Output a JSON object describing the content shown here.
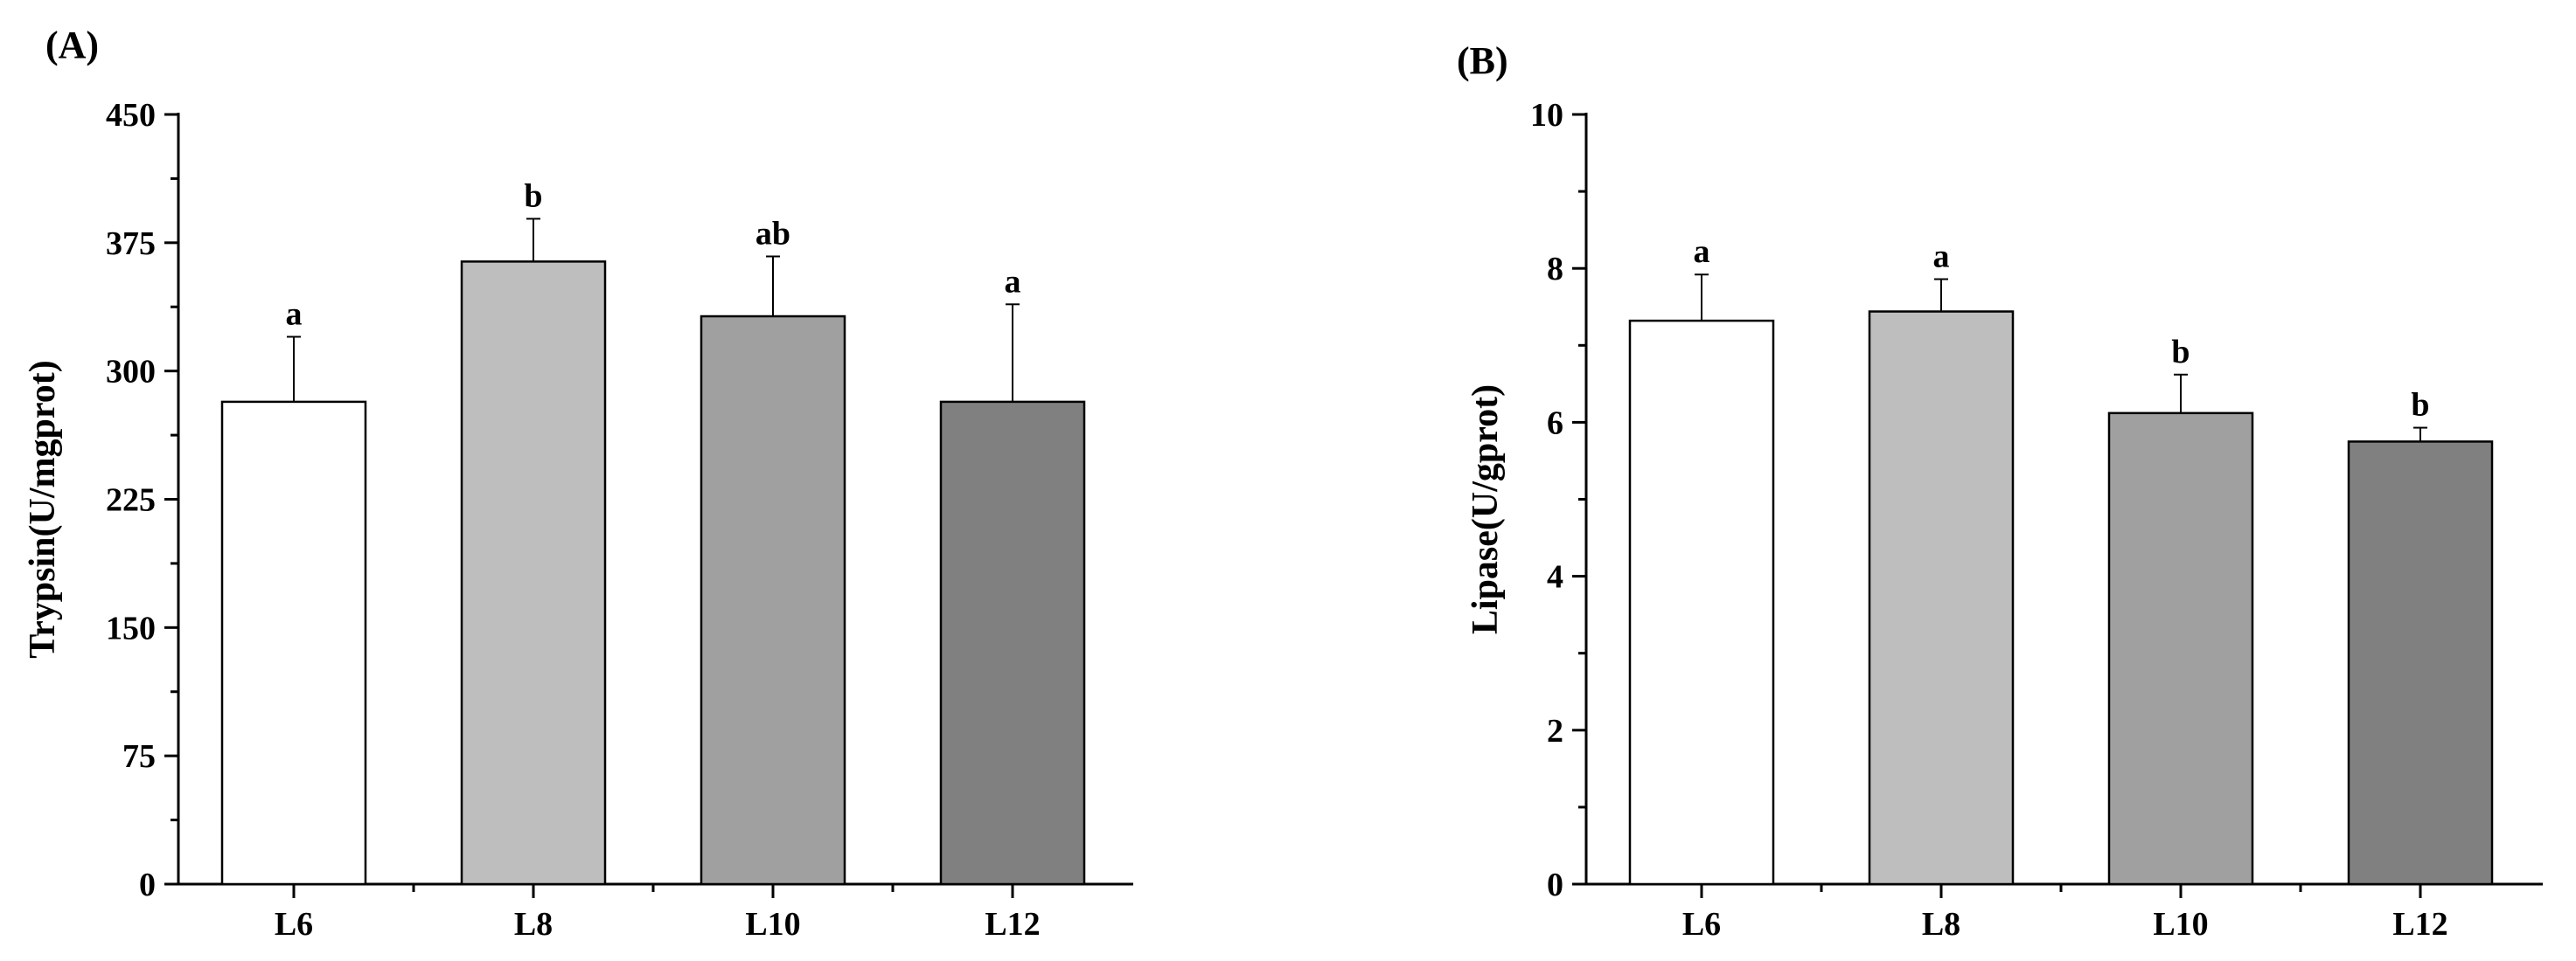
{
  "chart_data": [
    {
      "type": "bar",
      "panel_label": "(A)",
      "title": "",
      "xlabel": "",
      "ylabel": "Trypsin(U/mgprot)",
      "categories": [
        "L6",
        "L8",
        "L10",
        "L12"
      ],
      "values": [
        282,
        364,
        332,
        282
      ],
      "errors": [
        38,
        25,
        35,
        57
      ],
      "significance": [
        "a",
        "b",
        "ab",
        "a"
      ],
      "bar_colors": [
        "#ffffff",
        "#bebebe",
        "#a0a0a0",
        "#808080"
      ],
      "ylim": [
        0,
        450
      ],
      "yticks": [
        0,
        75,
        150,
        225,
        300,
        375,
        450
      ],
      "ytick_labels": [
        "0",
        "75",
        "150",
        "225",
        "300",
        "375",
        "450"
      ],
      "grid": false,
      "legend": "none"
    },
    {
      "type": "bar",
      "panel_label": "(B)",
      "title": "",
      "xlabel": "",
      "ylabel": "Lipase(U/gprot)",
      "categories": [
        "L6",
        "L8",
        "L10",
        "L12"
      ],
      "values": [
        7.32,
        7.44,
        6.12,
        5.75
      ],
      "errors": [
        0.6,
        0.42,
        0.5,
        0.18
      ],
      "significance": [
        "a",
        "a",
        "b",
        "b"
      ],
      "bar_colors": [
        "#ffffff",
        "#bebebe",
        "#a0a0a0",
        "#808080"
      ],
      "ylim": [
        0,
        10
      ],
      "yticks": [
        0,
        2,
        4,
        6,
        8,
        10
      ],
      "ytick_labels": [
        "0",
        "2",
        "4",
        "6",
        "8",
        "10"
      ],
      "grid": false,
      "legend": "none"
    }
  ]
}
